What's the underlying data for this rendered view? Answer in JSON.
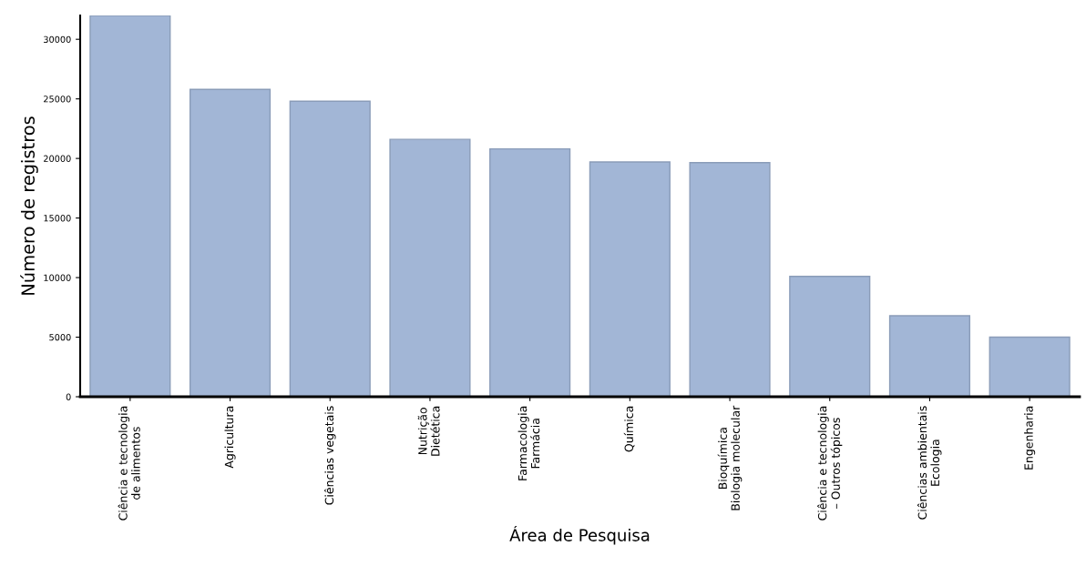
{
  "chart_data": {
    "type": "bar",
    "xlabel": "Área de Pesquisa",
    "ylabel": "Número de registros",
    "categories": [
      "Ciência e tecnologia\nde alimentos",
      "Agricultura",
      "Ciências vegetais",
      "Nutrição\nDietética",
      "Farmacologia\nFarmácia",
      "Química",
      "Bioquímica\nBiologia molecular",
      "Ciência e tecnologia\n– Outros tópicos",
      "Ciências ambientais\nEcologia",
      "Engenharia"
    ],
    "values": [
      32000,
      25800,
      24800,
      21600,
      20800,
      19700,
      19650,
      10100,
      6800,
      5000
    ],
    "color": "#a2b6d6",
    "ylim": [
      0,
      32000
    ],
    "yticks": [
      0,
      5000,
      10000,
      15000,
      20000,
      25000,
      30000
    ],
    "grid": false,
    "legend": false
  }
}
